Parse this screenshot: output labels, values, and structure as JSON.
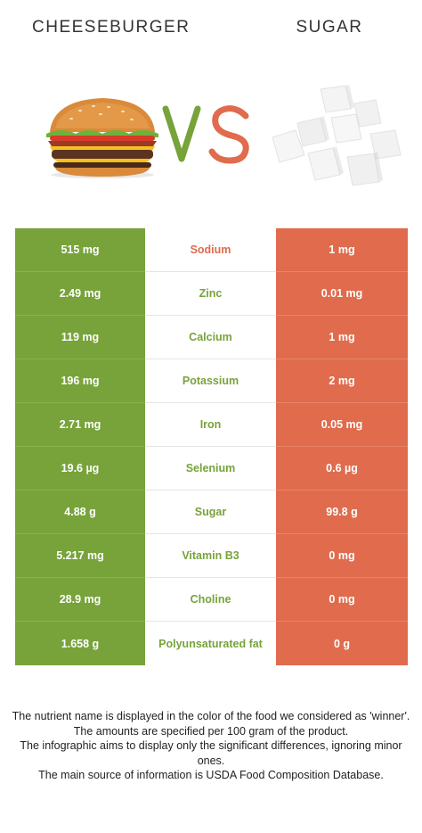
{
  "header": {
    "left_title": "CHEESEBURGER",
    "right_title": "SUGAR",
    "vs_text": "VS"
  },
  "colors": {
    "left_winner": "#77a33a",
    "right_winner": "#e06b4d",
    "vs_v": "#77a33a",
    "vs_s": "#e06b4d"
  },
  "rows": [
    {
      "left": "515 mg",
      "nutrient": "Sodium",
      "right": "1 mg",
      "winner": "right"
    },
    {
      "left": "2.49 mg",
      "nutrient": "Zinc",
      "right": "0.01 mg",
      "winner": "left"
    },
    {
      "left": "119 mg",
      "nutrient": "Calcium",
      "right": "1 mg",
      "winner": "left"
    },
    {
      "left": "196 mg",
      "nutrient": "Potassium",
      "right": "2 mg",
      "winner": "left"
    },
    {
      "left": "2.71 mg",
      "nutrient": "Iron",
      "right": "0.05 mg",
      "winner": "left"
    },
    {
      "left": "19.6 µg",
      "nutrient": "Selenium",
      "right": "0.6 µg",
      "winner": "left"
    },
    {
      "left": "4.88 g",
      "nutrient": "Sugar",
      "right": "99.8 g",
      "winner": "left"
    },
    {
      "left": "5.217 mg",
      "nutrient": "Vitamin B3",
      "right": "0 mg",
      "winner": "left"
    },
    {
      "left": "28.9 mg",
      "nutrient": "Choline",
      "right": "0 mg",
      "winner": "left"
    },
    {
      "left": "1.658 g",
      "nutrient": "Polyunsaturated fat",
      "right": "0 g",
      "winner": "left"
    }
  ],
  "footer": {
    "lines": [
      "The nutrient name is displayed in the color of the food we considered as 'winner'.",
      "The amounts are specified per 100 gram of the product.",
      "The infographic aims to display only the significant differences, ignoring minor ones.",
      "The main source of information is USDA Food Composition Database."
    ]
  }
}
